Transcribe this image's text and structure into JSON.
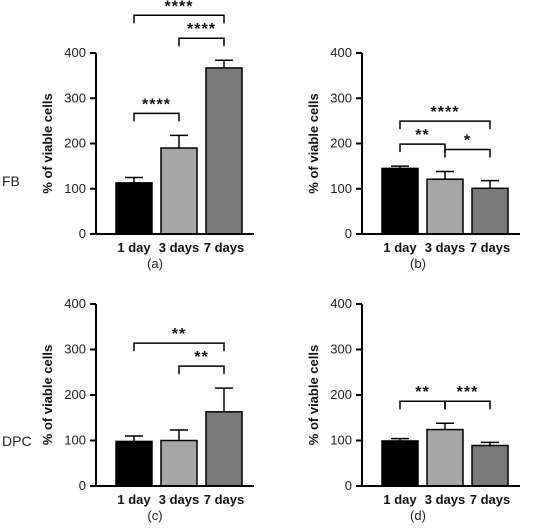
{
  "figure": {
    "row_labels": [
      "FB",
      "DPC"
    ]
  },
  "chart_data": [
    {
      "type": "bar",
      "panel_label": "(a)",
      "row": "FB",
      "xlabel": "",
      "ylabel": "% of viable cells",
      "ylim": [
        0,
        400
      ],
      "yticks": [
        0,
        100,
        200,
        300,
        400
      ],
      "categories": [
        "1 day",
        "3 days",
        "7 days"
      ],
      "values": [
        113,
        190,
        367
      ],
      "errors": [
        12,
        28,
        17
      ],
      "bar_colors": [
        "#000000",
        "#a6a6a6",
        "#7a7a7a"
      ],
      "significance": [
        {
          "from": 0,
          "to": 1,
          "label": "****"
        },
        {
          "from": 1,
          "to": 2,
          "label": "****"
        },
        {
          "from": 0,
          "to": 2,
          "label": "****"
        }
      ]
    },
    {
      "type": "bar",
      "panel_label": "(b)",
      "row": "FB",
      "xlabel": "",
      "ylabel": "% of viable cells",
      "ylim": [
        0,
        400
      ],
      "yticks": [
        0,
        100,
        200,
        300,
        400
      ],
      "categories": [
        "1 day",
        "3 days",
        "7 days"
      ],
      "values": [
        145,
        121,
        101
      ],
      "errors": [
        5,
        17,
        17
      ],
      "bar_colors": [
        "#000000",
        "#a6a6a6",
        "#7a7a7a"
      ],
      "significance": [
        {
          "from": 0,
          "to": 1,
          "label": "**"
        },
        {
          "from": 1,
          "to": 2,
          "label": "*"
        },
        {
          "from": 0,
          "to": 2,
          "label": "****"
        }
      ]
    },
    {
      "type": "bar",
      "panel_label": "(c)",
      "row": "DPC",
      "xlabel": "",
      "ylabel": "% of viable cells",
      "ylim": [
        0,
        400
      ],
      "yticks": [
        0,
        100,
        200,
        300,
        400
      ],
      "categories": [
        "1 day",
        "3 days",
        "7 days"
      ],
      "values": [
        98,
        100,
        163
      ],
      "errors": [
        12,
        23,
        52
      ],
      "bar_colors": [
        "#000000",
        "#a6a6a6",
        "#7a7a7a"
      ],
      "significance": [
        {
          "from": 1,
          "to": 2,
          "label": "**"
        },
        {
          "from": 0,
          "to": 2,
          "label": "**"
        }
      ]
    },
    {
      "type": "bar",
      "panel_label": "(d)",
      "row": "DPC",
      "xlabel": "",
      "ylabel": "% of viable cells",
      "ylim": [
        0,
        400
      ],
      "yticks": [
        0,
        100,
        200,
        300,
        400
      ],
      "categories": [
        "1 day",
        "3 days",
        "7 days"
      ],
      "values": [
        99,
        124,
        89
      ],
      "errors": [
        5,
        14,
        7
      ],
      "bar_colors": [
        "#000000",
        "#a6a6a6",
        "#7a7a7a"
      ],
      "significance": [
        {
          "from": 0,
          "to": 1,
          "label": "**"
        },
        {
          "from": 1,
          "to": 2,
          "label": "***"
        }
      ]
    }
  ]
}
